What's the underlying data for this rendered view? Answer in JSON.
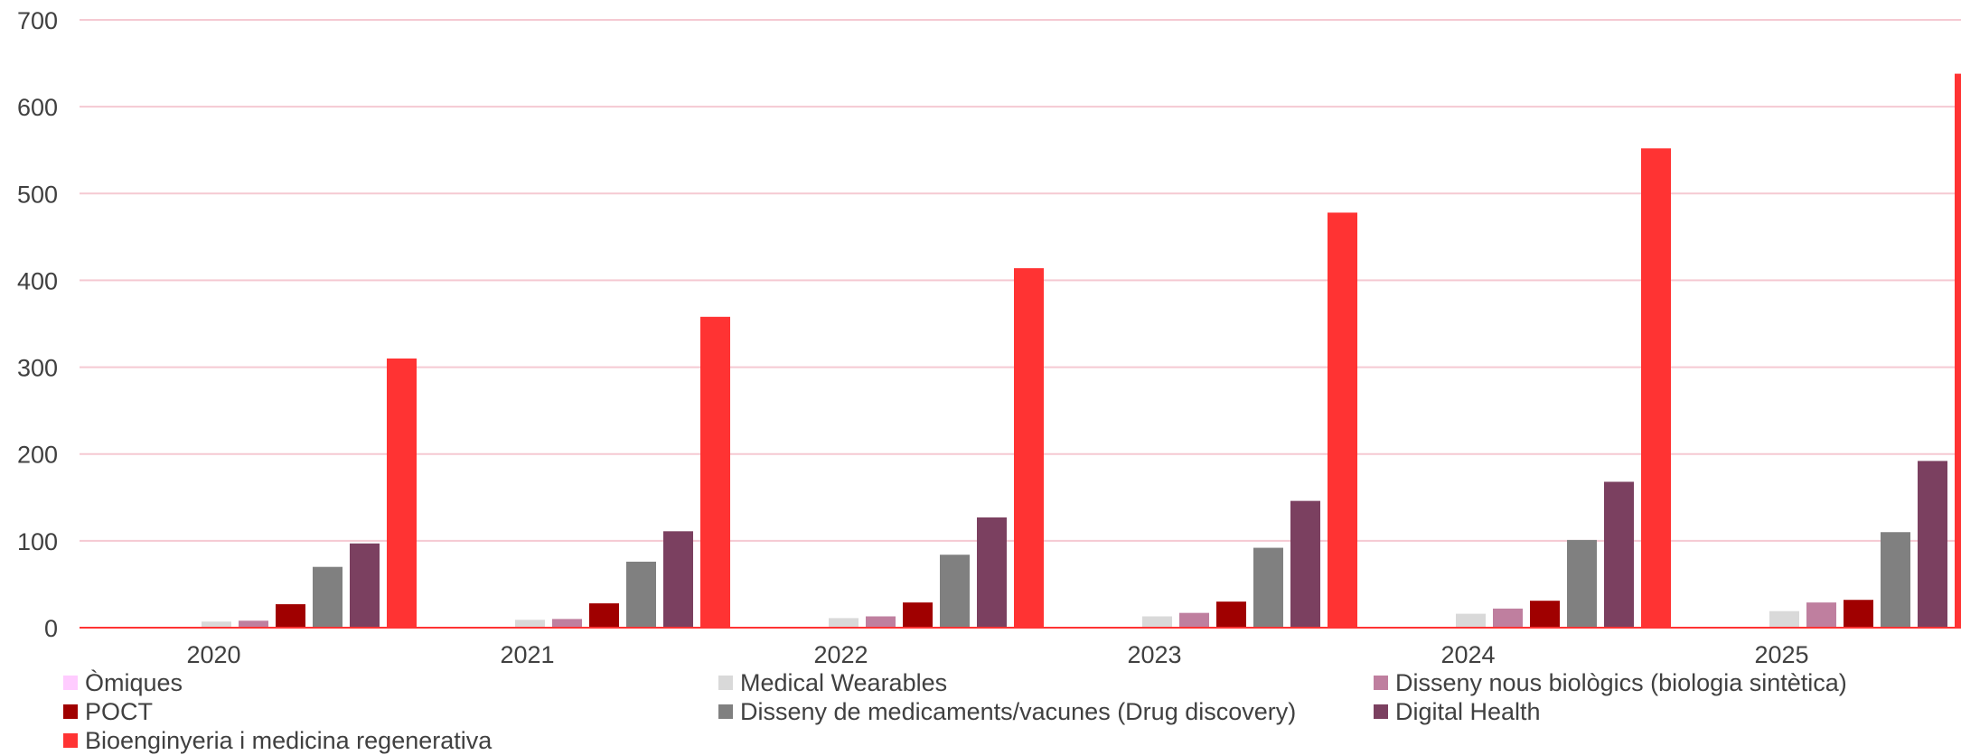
{
  "chart_data": {
    "type": "bar",
    "categories": [
      "2020",
      "2021",
      "2022",
      "2023",
      "2024",
      "2025"
    ],
    "ylim": [
      0,
      700
    ],
    "yticks": [
      0,
      100,
      200,
      300,
      400,
      500,
      600,
      700
    ],
    "grid": true,
    "legend_position": "bottom",
    "series": [
      {
        "name": "Òmiques",
        "color": "#ffccff",
        "values": [
          0,
          0,
          0,
          0,
          0,
          0
        ]
      },
      {
        "name": "Medical Wearables",
        "color": "#d9d9d9",
        "values": [
          7,
          9,
          11,
          13,
          16,
          19
        ]
      },
      {
        "name": "Disseny nous biològics (biologia sintètica)",
        "color": "#bf7f9f",
        "values": [
          8,
          10,
          13,
          17,
          22,
          29
        ]
      },
      {
        "name": "POCT",
        "color": "#a00000",
        "values": [
          27,
          28,
          29,
          30,
          31,
          32
        ]
      },
      {
        "name": "Disseny de medicaments/vacunes (Drug discovery)",
        "color": "#808080",
        "values": [
          70,
          76,
          84,
          92,
          101,
          110
        ]
      },
      {
        "name": "Digital Health",
        "color": "#7b4060",
        "values": [
          97,
          111,
          127,
          146,
          168,
          192
        ]
      },
      {
        "name": "Bioenginyeria i medicina regenerativa",
        "color": "#ff3333",
        "values": [
          310,
          358,
          414,
          478,
          552,
          638
        ]
      }
    ]
  },
  "colors": {
    "gridline": "#f5c9d2",
    "baseline": "#ff3333",
    "text": "#404040"
  }
}
